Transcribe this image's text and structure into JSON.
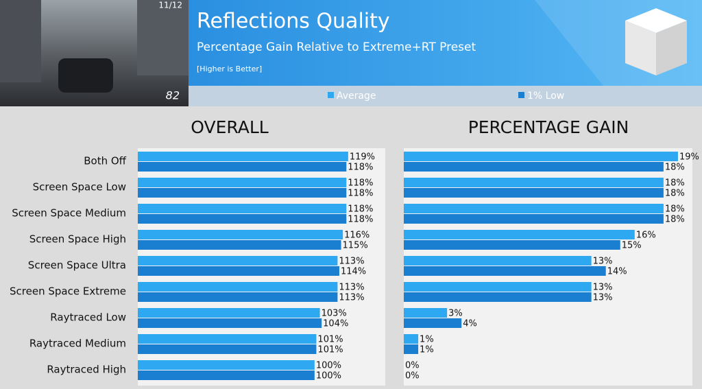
{
  "header": {
    "title": "Reflections Quality",
    "subtitle": "Percentage Gain Relative to Extreme+RT Preset",
    "note": "[Higher is Better]",
    "hud": [
      "11/12",
      "82"
    ]
  },
  "chart_data": [
    {
      "type": "bar",
      "orientation": "horizontal",
      "title": "OVERALL",
      "categories": [
        "Both Off",
        "Screen Space Low",
        "Screen Space Medium",
        "Screen Space High",
        "Screen Space Ultra",
        "Screen Space Extreme",
        "Raytraced Low",
        "Raytraced Medium",
        "Raytraced High"
      ],
      "xlim": [
        0,
        140
      ],
      "series": [
        {
          "name": "Average",
          "color": "#2fa8f2",
          "values": [
            119,
            118,
            118,
            116,
            113,
            113,
            103,
            101,
            100
          ],
          "value_labels": [
            "119%",
            "118%",
            "118%",
            "116%",
            "113%",
            "113%",
            "103%",
            "101%",
            "100%"
          ]
        },
        {
          "name": "1% Low",
          "color": "#1b7fd1",
          "values": [
            118,
            118,
            118,
            115,
            114,
            113,
            104,
            101,
            100
          ],
          "value_labels": [
            "118%",
            "118%",
            "118%",
            "115%",
            "114%",
            "113%",
            "104%",
            "101%",
            "100%"
          ]
        }
      ]
    },
    {
      "type": "bar",
      "orientation": "horizontal",
      "title": "PERCENTAGE GAIN",
      "xlim": [
        0,
        20
      ],
      "series": [
        {
          "color": "#2fa8f2",
          "values": [
            19,
            18,
            18,
            16,
            13,
            13,
            3,
            1,
            0
          ],
          "value_labels": [
            "19%",
            "18%",
            "18%",
            "16%",
            "13%",
            "13%",
            "3%",
            "1%",
            "0%"
          ]
        },
        {
          "color": "#1b7fd1",
          "values": [
            18,
            18,
            18,
            15,
            14,
            13,
            4,
            1,
            0
          ],
          "value_labels": [
            "18%",
            "18%",
            "18%",
            "15%",
            "14%",
            "13%",
            "4%",
            "1%",
            "0%"
          ]
        }
      ]
    }
  ]
}
